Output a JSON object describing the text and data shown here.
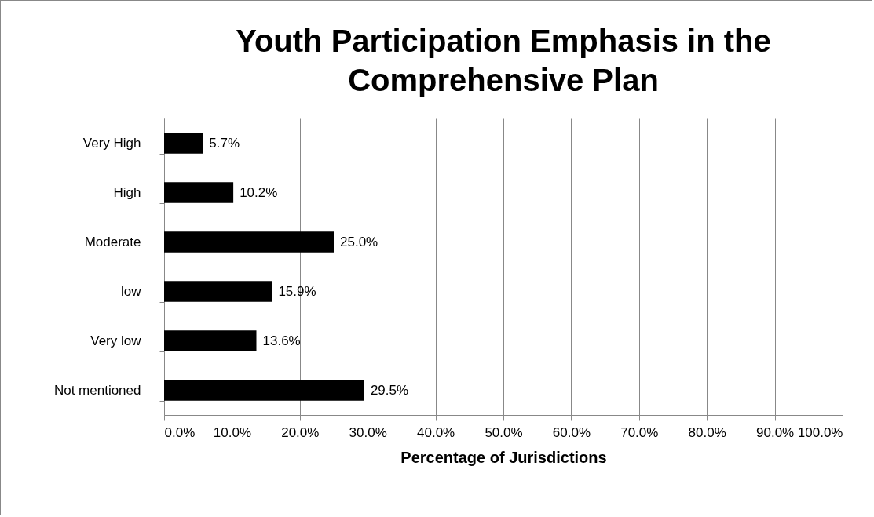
{
  "chart_data": {
    "type": "bar",
    "orientation": "horizontal",
    "title": "Youth Participation Emphasis in the Comprehensive Plan",
    "xlabel": "Percentage of Jurisdictions",
    "categories": [
      "Very High",
      "High",
      "Moderate",
      "low",
      "Very low",
      "Not mentioned"
    ],
    "values": [
      5.7,
      10.2,
      25.0,
      15.9,
      13.6,
      29.5
    ],
    "value_labels": [
      "5.7%",
      "10.2%",
      "25.0%",
      "15.9%",
      "13.6%",
      "29.5%"
    ],
    "color": "#000000",
    "xlim": [
      0,
      100
    ],
    "xticks": [
      {
        "value": 0,
        "label": "0.0%"
      },
      {
        "value": 10,
        "label": "10.0%"
      },
      {
        "value": 20,
        "label": "20.0%"
      },
      {
        "value": 30,
        "label": "30.0%"
      },
      {
        "value": 40,
        "label": "40.0%"
      },
      {
        "value": 50,
        "label": "50.0%"
      },
      {
        "value": 60,
        "label": "60.0%"
      },
      {
        "value": 70,
        "label": "70.0%"
      },
      {
        "value": 80,
        "label": "80.0%"
      },
      {
        "value": 90,
        "label": "90.0%"
      },
      {
        "value": 100,
        "label": "100.0%"
      }
    ],
    "grid": "x"
  }
}
